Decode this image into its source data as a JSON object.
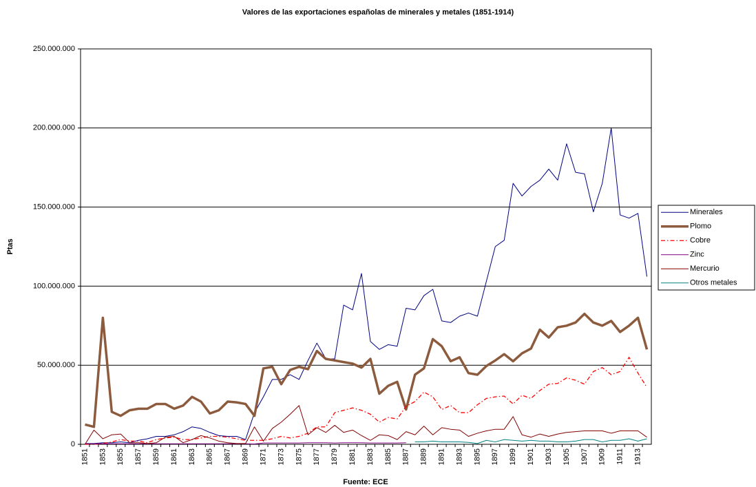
{
  "chart_data": {
    "type": "line",
    "title": "Valores de las exportaciones españolas de  minerales y metales (1851-1914)",
    "y_label": "Ptas",
    "x_label": "Fuente: ECE",
    "categories": [
      "1851",
      null,
      "1853",
      null,
      "1855",
      null,
      "1857",
      null,
      "1859",
      null,
      "1861",
      null,
      "1863",
      null,
      "1865",
      null,
      "1867",
      null,
      "1869",
      null,
      "1871",
      null,
      "1873",
      null,
      "1875",
      null,
      "1877",
      null,
      "1879",
      null,
      "1881",
      null,
      "1883",
      null,
      "1885",
      null,
      "1887",
      null,
      "1889",
      null,
      "1891",
      null,
      "1893",
      null,
      "1895",
      null,
      "1897",
      null,
      "1899",
      null,
      "1901",
      null,
      "1903",
      null,
      "1905",
      null,
      "1907",
      null,
      "1909",
      null,
      "1911",
      null,
      "1913",
      null
    ],
    "ylim": [
      0,
      250000000
    ],
    "yticks": [
      0,
      {
        "value": 50000000,
        "label": "50.000.000"
      },
      {
        "value": 100000000,
        "label": "100.000.000"
      },
      {
        "value": 150000000,
        "label": "150.000.000"
      },
      {
        "value": 200000000,
        "label": "200.000.000"
      },
      {
        "value": 250000000,
        "label": "250.000.000"
      }
    ],
    "grid": true,
    "legend": "right",
    "series": [
      {
        "name": "Minerales",
        "color": "#000080",
        "values": [
          500000.0,
          500000.0,
          1000000.0,
          1000000.0,
          1500000.0,
          1000000.0,
          2500000.0,
          3500000.0,
          5000000.0,
          5000000.0,
          6000000.0,
          8000000.0,
          11000000.0,
          10000000.0,
          7500000.0,
          5500000.0,
          5000000.0,
          5000000.0,
          3000000.0,
          20000000.0,
          30000000.0,
          41000000.0,
          41000000.0,
          44000000.0,
          41000000.0,
          53000000.0,
          64000000.0,
          54000000.0,
          54000000.0,
          88000000.0,
          85000000.0,
          108000000.0,
          65000000.0,
          60000000.0,
          63000000.0,
          62000000.0,
          86000000.0,
          85000000.0,
          94000000.0,
          98000000.0,
          78000000.0,
          77000000.0,
          81000000.0,
          83000000.0,
          81000000.0,
          103000000.0,
          125000000.0,
          129000000.0,
          165000000.0,
          157000000.0,
          163000000.0,
          167000000.0,
          174000000.0,
          167000000.0,
          190000000.0,
          172000000.0,
          171000000.0,
          147000000.0,
          165000000.0,
          200000000.0,
          145000000.0,
          143000000.0,
          146000000.0,
          106000000.0
        ]
      },
      {
        "name": "Plomo",
        "color": "#8c5a3c",
        "values": [
          12500000.0,
          11000000.0,
          80000000.0,
          20500000.0,
          18000000.0,
          21500000.0,
          22500000.0,
          22500000.0,
          25500000.0,
          25500000.0,
          22500000.0,
          24500000.0,
          30000000.0,
          27000000.0,
          19500000.0,
          21500000.0,
          27000000.0,
          26500000.0,
          25500000.0,
          18000000.0,
          48000000.0,
          49000000.0,
          38000000.0,
          47000000.0,
          49000000.0,
          47500000.0,
          59000000.0,
          54000000.0,
          53000000.0,
          52000000.0,
          51000000.0,
          48500000.0,
          54000000.0,
          32000000.0,
          37000000.0,
          39500000.0,
          22000000.0,
          44000000.0,
          48000000.0,
          66500000.0,
          62000000.0,
          52500000.0,
          55000000.0,
          45000000.0,
          44000000.0,
          49500000.0,
          53000000.0,
          57000000.0,
          52500000.0,
          57500000.0,
          60500000.0,
          72500000.0,
          67500000.0,
          74000000.0,
          75000000.0,
          77000000.0,
          82500000.0,
          77000000.0,
          75000000.0,
          78000000.0,
          71000000.0,
          75000000.0,
          80000000.0,
          60000000.0
        ]
      },
      {
        "name": "Cobre",
        "color": "#ff0000",
        "values": [
          0,
          0,
          500000.0,
          1500000.0,
          3000000.0,
          2000000.0,
          2000000.0,
          1000000.0,
          3000000.0,
          4000000.0,
          4500000.0,
          3000000.0,
          3000000.0,
          4000000.0,
          5000000.0,
          5000000.0,
          4500000.0,
          3500000.0,
          2500000.0,
          2500000.0,
          2500000.0,
          3500000.0,
          5000000.0,
          4000000.0,
          5000000.0,
          7000000.0,
          11000000.0,
          11000000.0,
          20000000.0,
          21500000.0,
          23000000.0,
          21500000.0,
          19000000.0,
          14000000.0,
          17000000.0,
          16000000.0,
          24000000.0,
          27000000.0,
          33000000.0,
          30000000.0,
          22000000.0,
          24500000.0,
          20000000.0,
          20000000.0,
          25000000.0,
          29000000.0,
          30000000.0,
          30500000.0,
          25500000.0,
          31000000.0,
          29000000.0,
          34000000.0,
          38000000.0,
          38500000.0,
          42000000.0,
          40500000.0,
          38000000.0,
          46000000.0,
          48500000.0,
          44000000.0,
          46000000.0,
          55000000.0,
          45000000.0,
          36000000.0
        ]
      },
      {
        "name": "Zinc",
        "color": "#800080",
        "values": [
          300000.0,
          300000.0,
          300000.0,
          300000.0,
          300000.0,
          300000.0,
          300000.0,
          300000.0,
          300000.0,
          300000.0,
          300000.0,
          300000.0,
          300000.0,
          300000.0,
          300000.0,
          300000.0,
          300000.0,
          300000.0,
          300000.0,
          200000.0,
          800000.0,
          800000.0,
          800000.0,
          800000.0,
          800000.0,
          1000000.0,
          1000000.0,
          1000000.0,
          800000.0,
          1000000.0,
          1000000.0,
          1000000.0,
          800000.0,
          800000.0,
          800000.0,
          800000.0,
          1000000.0,
          null,
          null,
          null,
          null,
          null,
          null,
          null,
          null,
          null,
          null,
          null,
          null,
          null,
          null,
          null,
          null,
          null,
          null,
          null,
          null,
          null,
          null,
          null,
          null,
          null,
          null,
          null
        ]
      },
      {
        "name": "Mercurio",
        "color": "#800000",
        "values": [
          0,
          9000000.0,
          3500000.0,
          6000000.0,
          6500000.0,
          1000000.0,
          1000000.0,
          500000.0,
          1000000.0,
          4500000.0,
          5000000.0,
          1000000.0,
          3000000.0,
          5500000.0,
          4000000.0,
          2000000.0,
          1000000.0,
          500000.0,
          500000.0,
          11000000.0,
          2000000.0,
          10000000.0,
          14000000.0,
          19000000.0,
          24500000.0,
          6000000.0,
          10500000.0,
          7500000.0,
          12000000.0,
          7500000.0,
          9000000.0,
          5500000.0,
          2500000.0,
          6000000.0,
          5500000.0,
          3000000.0,
          8000000.0,
          6000000.0,
          11500000.0,
          6000000.0,
          10500000.0,
          9500000.0,
          9000000.0,
          5000000.0,
          7000000.0,
          8500000.0,
          9500000.0,
          9500000.0,
          17500000.0,
          6000000.0,
          4500000.0,
          6500000.0,
          5000000.0,
          6500000.0,
          7500000.0,
          8000000.0,
          8500000.0,
          8500000.0,
          8500000.0,
          7000000.0,
          8500000.0,
          8500000.0,
          8500000.0,
          4500000.0
        ]
      },
      {
        "name": "Otros metales",
        "color": "#008080",
        "values": [
          null,
          null,
          null,
          null,
          null,
          null,
          null,
          null,
          null,
          null,
          null,
          null,
          null,
          null,
          null,
          null,
          null,
          null,
          null,
          null,
          null,
          null,
          null,
          null,
          null,
          null,
          null,
          null,
          null,
          null,
          null,
          null,
          null,
          null,
          null,
          null,
          null,
          1500000.0,
          1500000.0,
          2000000.0,
          1500000.0,
          1500000.0,
          1500000.0,
          1200000.0,
          500000.0,
          2500000.0,
          1500000.0,
          3000000.0,
          2500000.0,
          2000000.0,
          2500000.0,
          2000000.0,
          2000000.0,
          1500000.0,
          1500000.0,
          2000000.0,
          3000000.0,
          3000000.0,
          1500000.0,
          2500000.0,
          2500000.0,
          3500000.0,
          2000000.0,
          3500000.0
        ]
      }
    ]
  }
}
